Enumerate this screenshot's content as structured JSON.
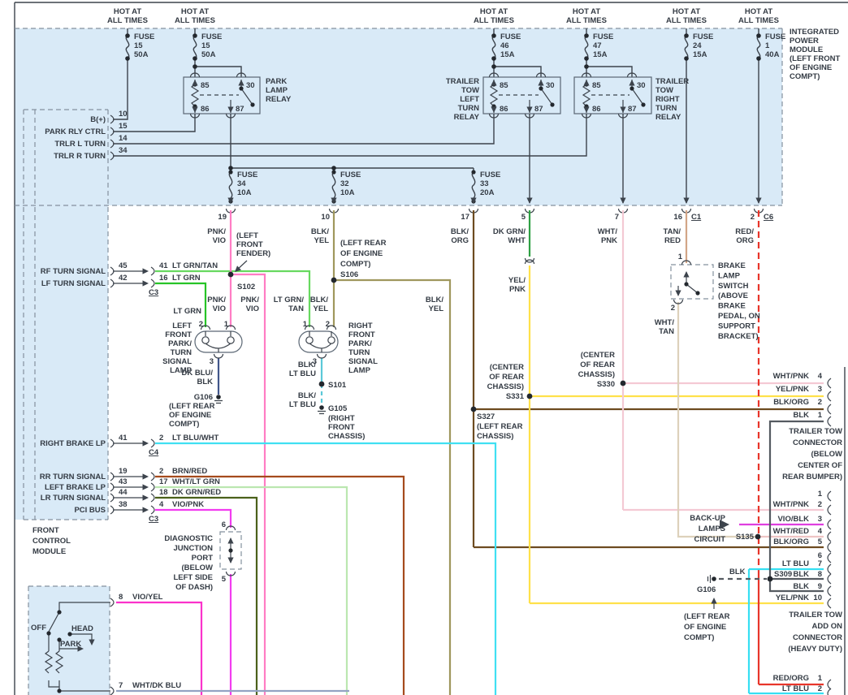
{
  "colors": {
    "panel": "#d9eaf7",
    "pnk_vio": "#ff7dc4",
    "blk_yel": "#9f975d",
    "blk_org": "#6d4b20",
    "dk_grn_wht": "#2fa044",
    "yel_pnk": "#ffe14a",
    "wht_pnk": "#f4c9d4",
    "tan_red": "#d3a587",
    "red_org": "#e8352a",
    "wht_tan": "#ddd1bb",
    "lt_grn_tan": "#67d95f",
    "lt_grn": "#27c427",
    "dk_blu_blk": "#41568a",
    "blk_lt_blu": "#5cc8d8",
    "lt_blu_wht": "#40e0f2",
    "brn_red": "#a54b1d",
    "wht_lt_grn": "#bbe7b0",
    "dk_grn_red": "#4b611b",
    "vio_pnk": "#f23cf0",
    "vio_yel": "#fb32cb",
    "vio_blk": "#df3fdf",
    "blk": "#555b61",
    "wht_red": "#eec4c4",
    "wht_dk_blu": "#93a2c3",
    "lt_blu": "#36dff2"
  },
  "top": {
    "hot": "HOT AT\nALL TIMES",
    "fuse_15a": "FUSE\n15\n50A",
    "fuse_15b": "FUSE\n15\n50A",
    "fuse_46": "FUSE\n46\n15A",
    "fuse_47": "FUSE\n47\n15A",
    "fuse_24": "FUSE\n24\n15A",
    "fuse_1": "FUSE\n1\n40A",
    "fuse_34": "FUSE\n34\n10A",
    "fuse_32": "FUSE\n32\n10A",
    "fuse_33": "FUSE\n33\n20A",
    "ipm": "INTEGRATED\nPOWER\nMODULE\n(LEFT FRONT\nOF ENGINE\nCOMPT)"
  },
  "relays": {
    "park": "PARK\nLAMP\nRELAY",
    "tt_left": "TRAILER\nTOW\nLEFT\nTURN\nRELAY",
    "tt_right": "TRAILER\nTOW\nRIGHT\nTURN\nRELAY",
    "t85": "85",
    "t30": "30",
    "t86": "86",
    "t87": "87"
  },
  "fcm": {
    "label": "FRONT\nCONTROL\nMODULE",
    "rows_top": [
      {
        "name": "B(+)",
        "pin": "10"
      },
      {
        "name": "PARK RLY CTRL",
        "pin": "15"
      },
      {
        "name": "TRLR L TURN",
        "pin": "14"
      },
      {
        "name": "TRLR R TURN",
        "pin": "34"
      }
    ],
    "rows_sig": [
      {
        "name": "RF TURN SIGNAL",
        "pin_a": "45",
        "pin_b": "41",
        "wire": "LT GRN/TAN"
      },
      {
        "name": "LF TURN SIGNAL",
        "pin_a": "42",
        "pin_b": "16",
        "wire": "LT GRN"
      },
      {
        "name": "RIGHT BRAKE LP",
        "pin_a": "41",
        "pin_b": "2",
        "wire": "LT BLU/WHT"
      },
      {
        "name": "RR TURN SIGNAL",
        "pin_a": "19",
        "pin_b": "2",
        "wire": "BRN/RED"
      },
      {
        "name": "LEFT BRAKE LP",
        "pin_a": "43",
        "pin_b": "17",
        "wire": "WHT/LT GRN"
      },
      {
        "name": "LR TURN SIGNAL",
        "pin_a": "44",
        "pin_b": "18",
        "wire": "DK GRN/RED"
      },
      {
        "name": "PCI BUS",
        "pin_a": "38",
        "pin_b": "4",
        "wire": "VIO/PNK"
      }
    ],
    "c3": "C3",
    "c4": "C4"
  },
  "pins_row": {
    "p19": "19",
    "p10": "10",
    "p17": "17",
    "p5": "5",
    "p7": "7",
    "p16": "16",
    "c1": "C1",
    "p2": "2",
    "c6": "C6"
  },
  "wires": {
    "pnk_vio": "PNK/\nVIO",
    "blk_yel": "BLK/\nYEL",
    "blk_org": "BLK/\nORG",
    "dk_grn_wht": "DK GRN/\nWHT",
    "yel_pnk": "YEL/\nPNK",
    "wht_pnk": "WHT/\nPNK",
    "tan_red": "TAN/\nRED",
    "red_org": "RED/\nORG",
    "wht_tan": "WHT/\nTAN",
    "lt_grn": "LT GRN",
    "lt_grn_tan": "LT GRN/\nTAN",
    "dk_blu_blk": "DK BLU/\nBLK",
    "blk_lt_blu": "BLK/\nLT BLU"
  },
  "lamps": {
    "left": "LEFT\nFRONT\nPARK/\nTURN\nSIGNAL\nLAMP",
    "right": "RIGHT\nFRONT\nPARK/\nTURN\nSIGNAL\nLAMP",
    "p1": "1",
    "p2": "2",
    "p3": "3"
  },
  "notes": {
    "fender": "(LEFT\nFRONT\nFENDER)",
    "s102": "S102",
    "s106": "(LEFT REAR\nOF ENGINE\nCOMPT)\nS106",
    "s101": "S101",
    "g106a": "G106",
    "g106a_loc": "(LEFT REAR\nOF ENGINE\nCOMPT)",
    "g105": "G105",
    "g105_loc": "(RIGHT\nFRONT\nCHASSIS)",
    "s327": "S327\n(LEFT REAR\nCHASSIS)",
    "s331": "(CENTER\nOF REAR\nCHASSIS)\nS331",
    "s330": "(CENTER\nOF REAR\nCHASSIS)\nS330",
    "brake": "BRAKE\nLAMP\nSWITCH\n(ABOVE\nBRAKE\nPEDAL, ON\nSUPPORT\nBRACKET)",
    "brake_p1": "1",
    "brake_p2": "2",
    "diag": "DIAGNOSTIC\nJUNCTION\nPORT\n(BELOW\nLEFT SIDE\nOF DASH)",
    "diag_p6": "6",
    "diag_p5": "5",
    "backup": "BACK-UP\nLAMPS\nCIRCUIT",
    "s135": "S135",
    "s309": "S309",
    "blk": "BLK",
    "g106b": "G106",
    "g106b_loc": "(LEFT REAR\nOF ENGINE\nCOMPT)"
  },
  "conn": {
    "tow": "TRAILER TOW\nCONNECTOR\n(BELOW\nCENTER OF\nREAR BUMPER)",
    "tow_pins": [
      {
        "w": "WHT/PNK",
        "n": "4"
      },
      {
        "w": "YEL/PNK",
        "n": "3"
      },
      {
        "w": "BLK/ORG",
        "n": "2"
      },
      {
        "w": "BLK",
        "n": "1"
      }
    ],
    "addon": "TRAILER TOW\nADD ON\nCONNECTOR\n(HEAVY DUTY)",
    "addon_pins": [
      {
        "w": "",
        "n": "1"
      },
      {
        "w": "WHT/PNK",
        "n": "2"
      },
      {
        "w": "VIO/BLK",
        "n": "3"
      },
      {
        "w": "WHT/RED",
        "n": "4"
      },
      {
        "w": "BLK/ORG",
        "n": "5"
      },
      {
        "w": "",
        "n": "6"
      },
      {
        "w": "LT BLU",
        "n": "7"
      },
      {
        "w": "BLK",
        "n": "8"
      },
      {
        "w": "BLK",
        "n": "9"
      },
      {
        "w": "YEL/PNK",
        "n": "10"
      }
    ],
    "bottom_pins": [
      {
        "w": "RED/ORG",
        "n": "1"
      },
      {
        "w": "LT BLU",
        "n": "2"
      }
    ]
  },
  "headlamp": {
    "p8": "8",
    "w8": "VIO/YEL",
    "p7": "7",
    "w7": "WHT/DK BLU",
    "off": "OFF",
    "head": "HEAD",
    "park": "PARK"
  }
}
